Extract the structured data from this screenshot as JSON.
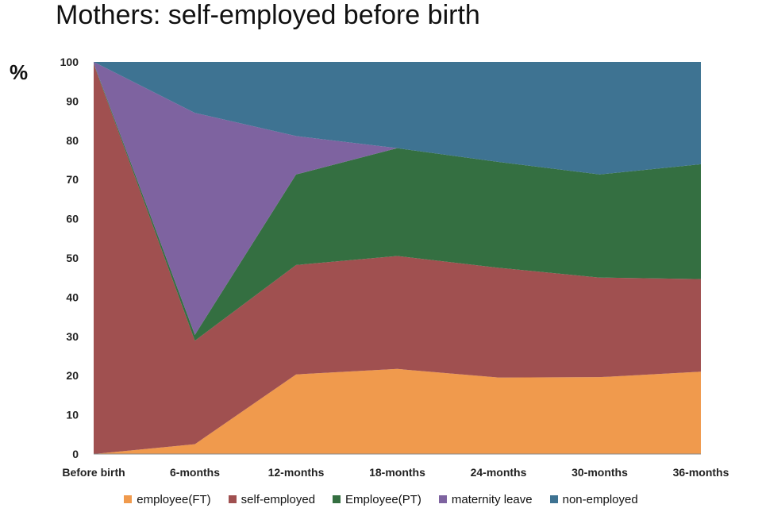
{
  "title": "Mothers: self-employed before birth",
  "unit_label": "%",
  "chart_data": {
    "type": "area",
    "stacked": true,
    "categories": [
      "Before birth",
      "6-months",
      "12-months",
      "18-months",
      "24-months",
      "30-months",
      "36-months"
    ],
    "ylim": [
      0,
      100
    ],
    "yticks": [
      0,
      10,
      20,
      30,
      40,
      50,
      60,
      70,
      80,
      90,
      100
    ],
    "grid": false,
    "legend_position": "bottom",
    "series": [
      {
        "name": "employee(FT)",
        "color": "#F09A4D",
        "values": [
          0,
          2.5,
          20.3,
          21.7,
          19.5,
          19.6,
          21.0
        ]
      },
      {
        "name": "self-employed",
        "color": "#A05050",
        "values": [
          99.5,
          26.4,
          27.9,
          28.8,
          28.0,
          25.4,
          23.6
        ]
      },
      {
        "name": "Employee(PT)",
        "color": "#346F41",
        "values": [
          0.2,
          1.5,
          23.1,
          27.5,
          27.0,
          26.3,
          29.3
        ]
      },
      {
        "name": "maternity leave",
        "color": "#7E63A0",
        "values": [
          0.3,
          56.6,
          9.8,
          0,
          0,
          0,
          0
        ]
      },
      {
        "name": "non-employed",
        "color": "#3E7392",
        "values": [
          0,
          13.0,
          18.9,
          22.0,
          25.5,
          28.7,
          26.1
        ]
      }
    ]
  }
}
